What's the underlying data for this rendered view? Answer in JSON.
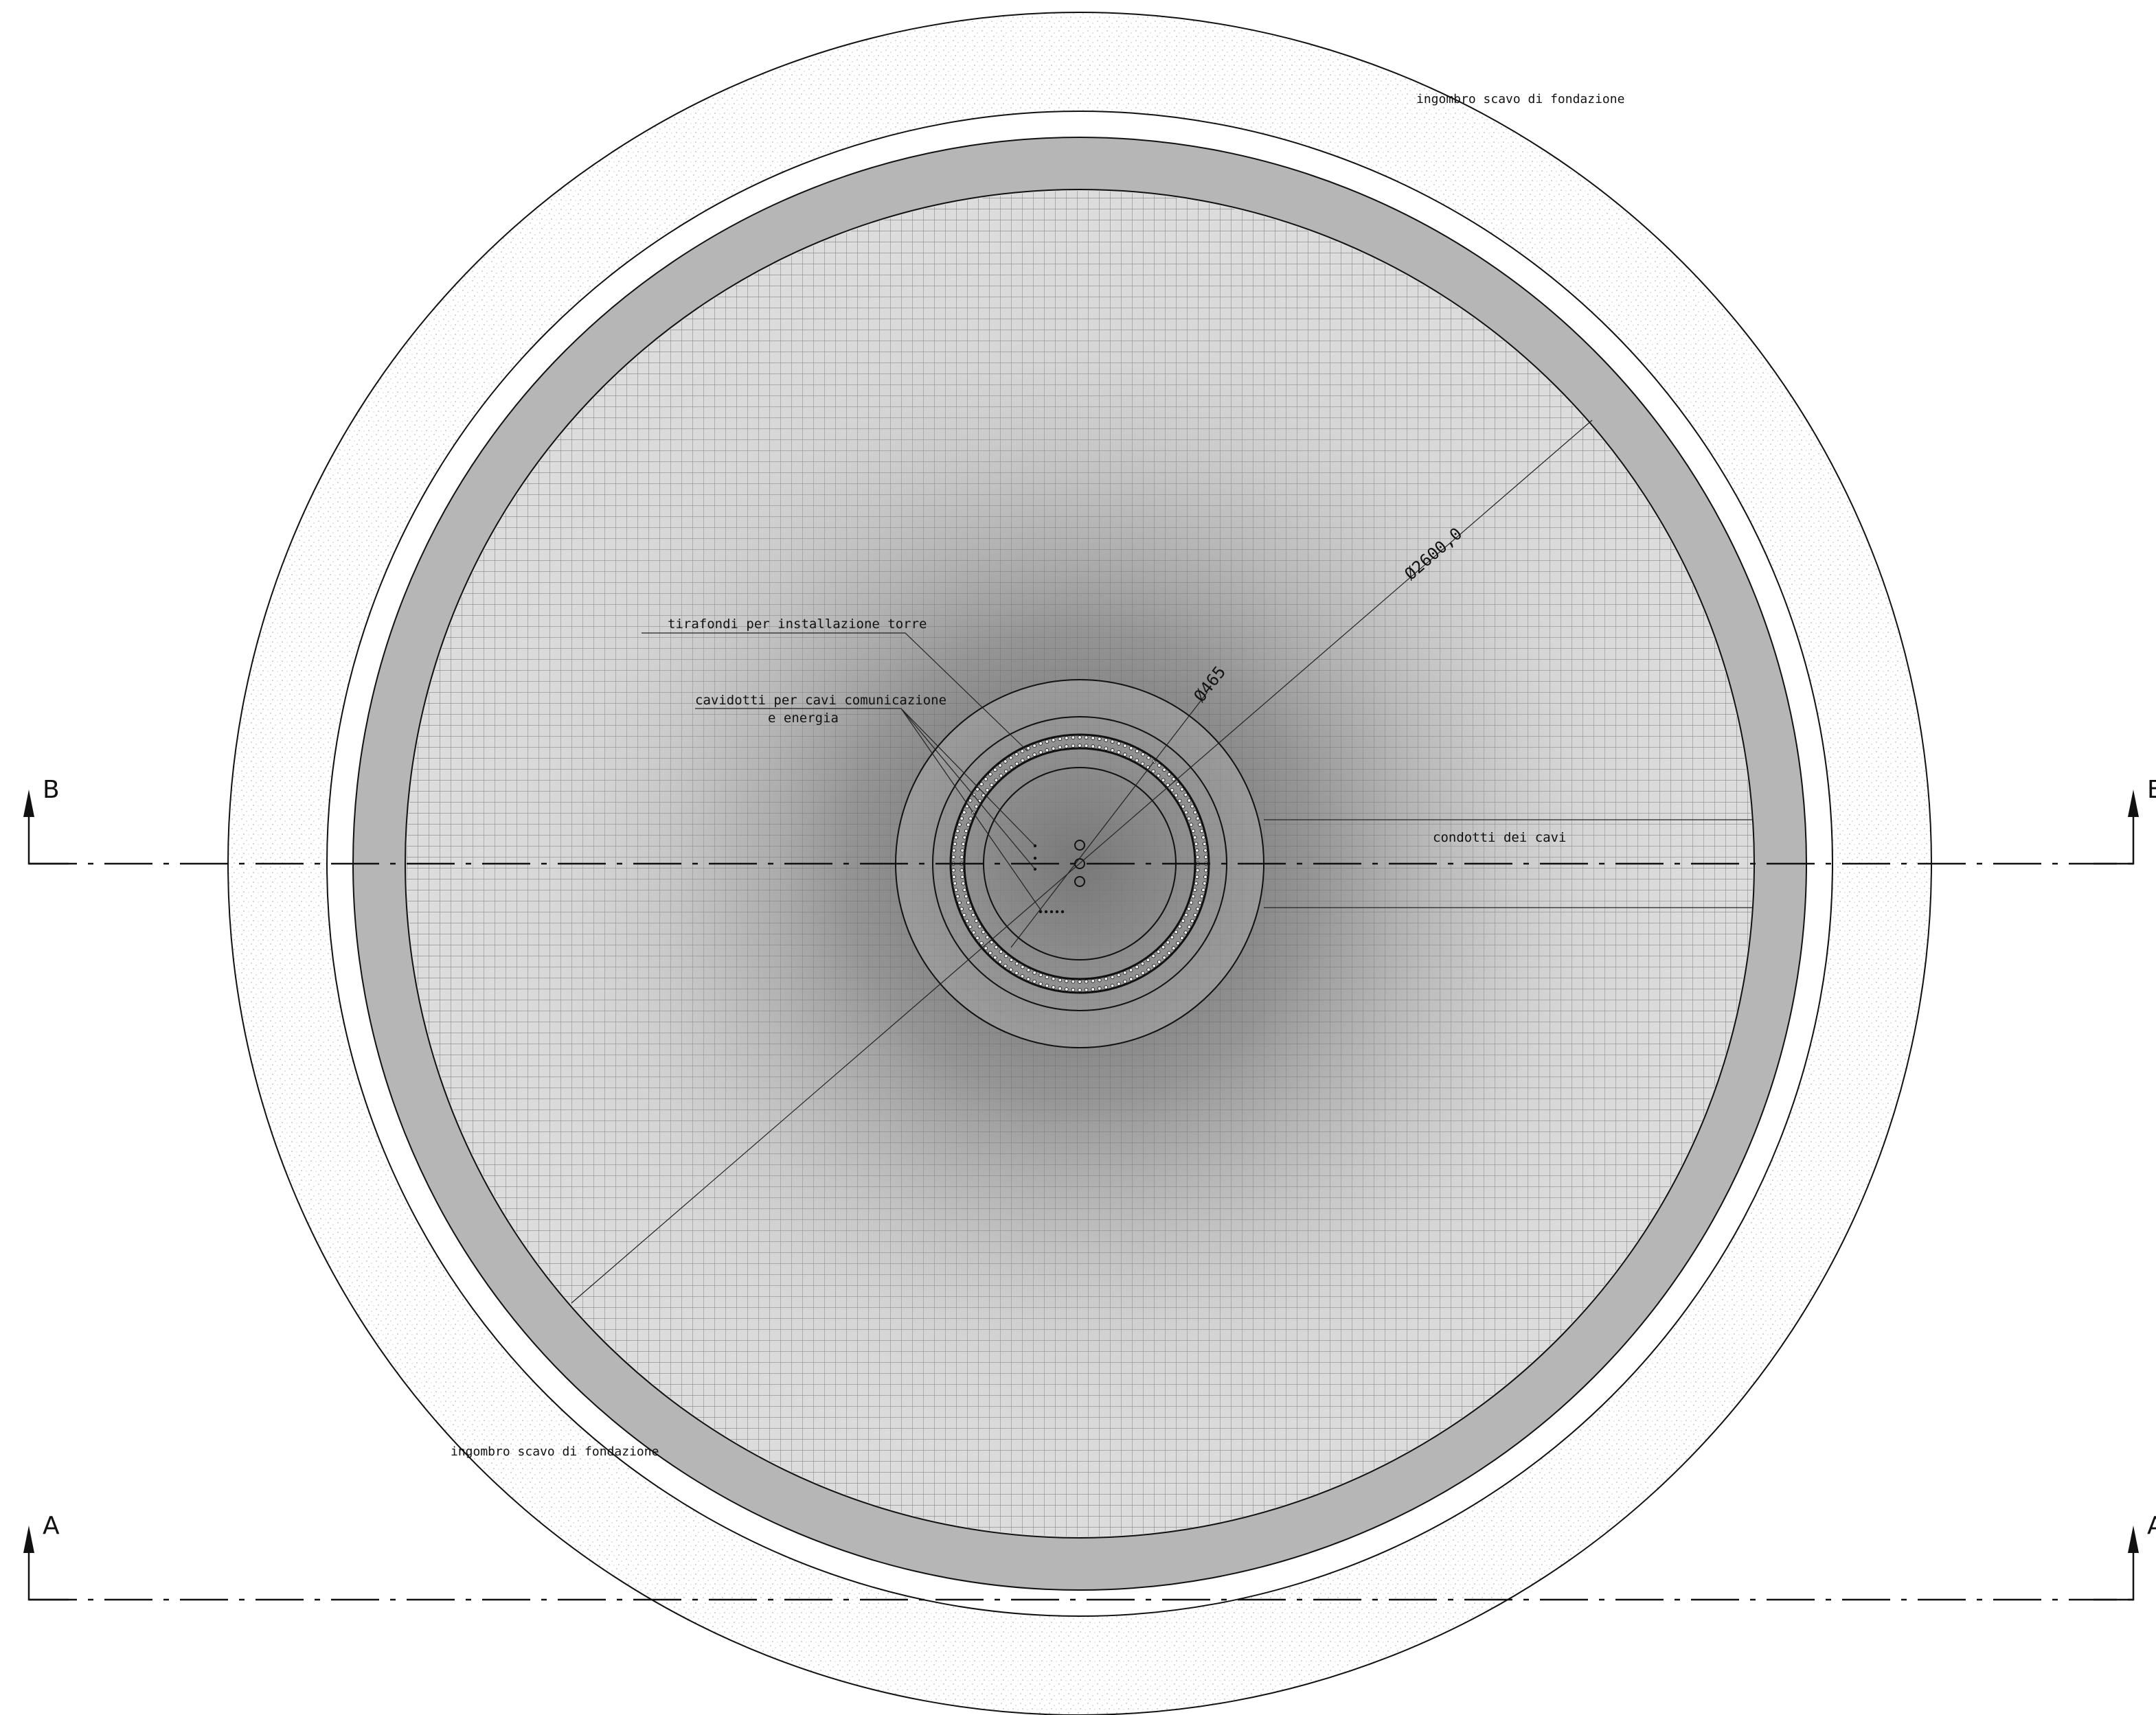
{
  "labels": {
    "excavation_top": "ingombro scavo di fondazione",
    "excavation_bottom": "ingombro scavo di fondazione",
    "anchor_bolts": "tirafondi per installazione torre",
    "ducts_line1": "cavidotti per cavi comunicazione",
    "ducts_line2": "e energia",
    "cable_conduits": "condotti dei cavi"
  },
  "dimensions": {
    "outer_diameter": "Ø2600,0",
    "inner_diameter": "Ø465"
  },
  "sections": {
    "b_left": "B",
    "b_right": "B",
    "a_left": "A",
    "a_right": "A"
  },
  "colors": {
    "line": "#111111",
    "ring_fill": "#b6b6b6",
    "mesh_fill": "#d8d8d8",
    "center_shade": "#666666",
    "stipple": "#c8c8c8"
  }
}
